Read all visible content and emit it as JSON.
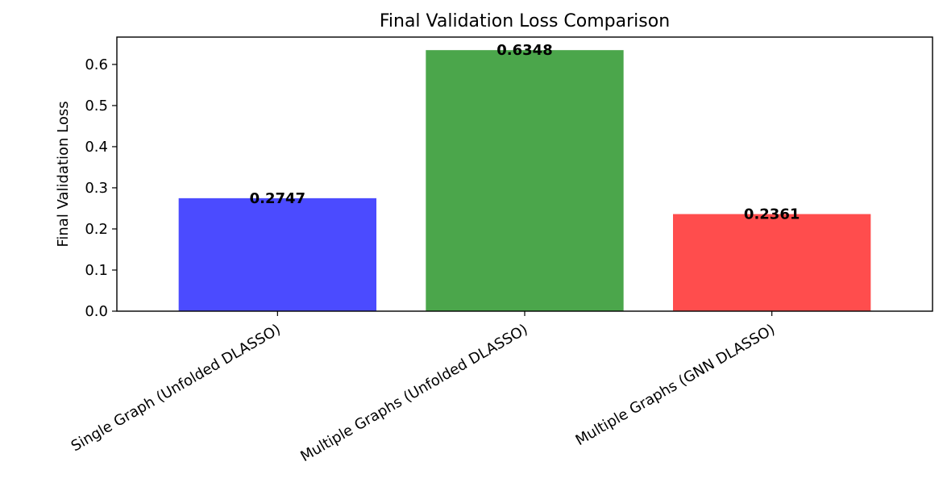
{
  "chart_data": {
    "type": "bar",
    "title": "Final Validation Loss Comparison",
    "xlabel": "",
    "ylabel": "Final Validation Loss",
    "categories": [
      "Single Graph (Unfolded DLASSO)",
      "Multiple Graphs (Unfolded DLASSO)",
      "Multiple Graphs (GNN DLASSO)"
    ],
    "values": [
      0.2747,
      0.6348,
      0.2361
    ],
    "value_labels": [
      "0.2747",
      "0.6348",
      "0.2361"
    ],
    "colors": [
      "#4b4bff",
      "#4ba64b",
      "#ff4d4d"
    ],
    "ylim": [
      0,
      0.6665
    ],
    "yticks": [
      0.0,
      0.1,
      0.2,
      0.3,
      0.4,
      0.5,
      0.6
    ],
    "ytick_labels": [
      "0.0",
      "0.1",
      "0.2",
      "0.3",
      "0.4",
      "0.5",
      "0.6"
    ],
    "grid": false,
    "legend": "none"
  }
}
